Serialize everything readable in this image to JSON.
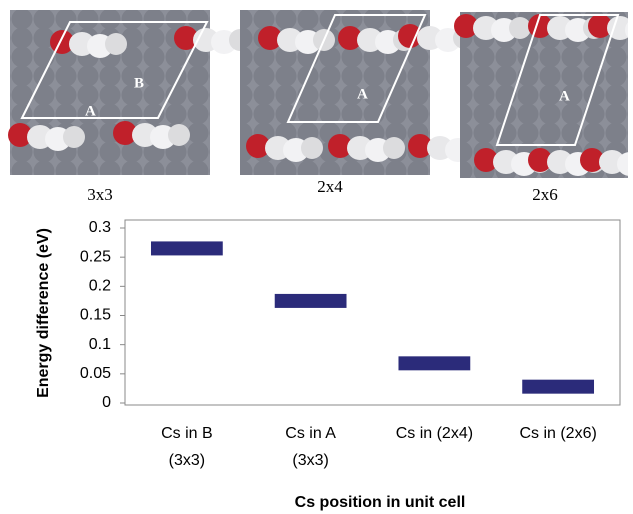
{
  "panels": [
    {
      "label": "3x3",
      "cell_labels": [
        "A",
        "B"
      ]
    },
    {
      "label": "2x4",
      "cell_labels": [
        "A"
      ]
    },
    {
      "label": "2x6",
      "cell_labels": [
        "A"
      ]
    }
  ],
  "chart_data": {
    "type": "marker",
    "y_label": "Energy difference (eV)",
    "x_label": "Cs position in unit cell",
    "categories": [
      [
        "Cs in B",
        "(3x3)"
      ],
      [
        "Cs in A",
        "(3x3)"
      ],
      [
        "Cs in (2x4)"
      ],
      [
        "Cs in (2x6)"
      ]
    ],
    "values": [
      0.265,
      0.175,
      0.068,
      0.028
    ],
    "color": "#2b2b7a",
    "ylim": [
      0,
      0.3
    ],
    "yticks": [
      0,
      0.05,
      0.1,
      0.15,
      0.2,
      0.25,
      0.3
    ],
    "grid": false
  }
}
